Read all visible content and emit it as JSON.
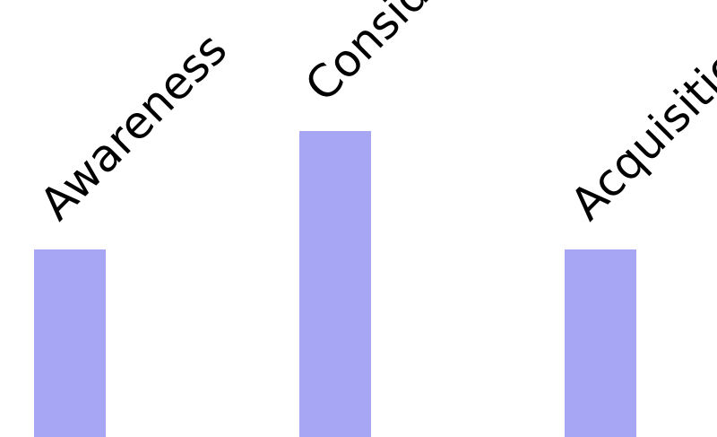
{
  "chart_data": {
    "type": "bar",
    "categories": [
      "Awareness",
      "Consideration",
      "Acquisition"
    ],
    "values": [
      209,
      341,
      209
    ],
    "color": "#a6a6f5",
    "ylim": [
      0,
      487
    ]
  }
}
